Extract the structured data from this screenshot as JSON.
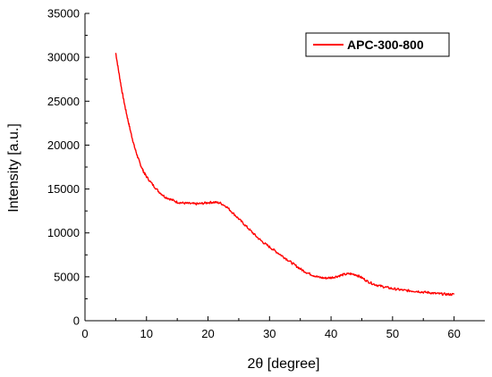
{
  "chart_data": {
    "type": "line",
    "title": "",
    "xlabel": "2θ [degree]",
    "ylabel": "Intensity [a.u.]",
    "xlim": [
      0,
      65
    ],
    "ylim": [
      0,
      35000
    ],
    "xticks": [
      0,
      10,
      20,
      30,
      40,
      50,
      60
    ],
    "yticks": [
      0,
      5000,
      10000,
      15000,
      20000,
      25000,
      30000,
      35000
    ],
    "xtick_labels": [
      "0",
      "10",
      "20",
      "30",
      "40",
      "50",
      "60"
    ],
    "ytick_labels": [
      "0",
      "5000",
      "10000",
      "15000",
      "20000",
      "25000",
      "30000",
      "35000"
    ],
    "grid": false,
    "legend_position": "top-right",
    "series": [
      {
        "name": "APC-300-800",
        "color": "#ff0000",
        "x": [
          5,
          5.5,
          6,
          6.5,
          7,
          7.5,
          8,
          8.5,
          9,
          9.5,
          10,
          11,
          12,
          13,
          14,
          15,
          16,
          17,
          18,
          19,
          20,
          21,
          22,
          23,
          24,
          25,
          26,
          27,
          28,
          29,
          30,
          31,
          32,
          33,
          34,
          35,
          36,
          37,
          38,
          39,
          40,
          41,
          42,
          43,
          44,
          45,
          46,
          47,
          48,
          49,
          50,
          51,
          52,
          53,
          54,
          55,
          56,
          57,
          58,
          59,
          60
        ],
        "y": [
          30500,
          28300,
          26200,
          24400,
          22800,
          21300,
          19900,
          18800,
          17800,
          17000,
          16400,
          15500,
          14700,
          14100,
          13800,
          13500,
          13400,
          13350,
          13300,
          13350,
          13450,
          13500,
          13400,
          13000,
          12300,
          11600,
          10900,
          10200,
          9500,
          8900,
          8400,
          7900,
          7400,
          6900,
          6400,
          5900,
          5500,
          5200,
          4950,
          4850,
          4900,
          5050,
          5250,
          5350,
          5250,
          4900,
          4450,
          4150,
          3950,
          3800,
          3650,
          3550,
          3450,
          3400,
          3350,
          3250,
          3200,
          3100,
          3050,
          3000,
          3000
        ]
      }
    ]
  }
}
